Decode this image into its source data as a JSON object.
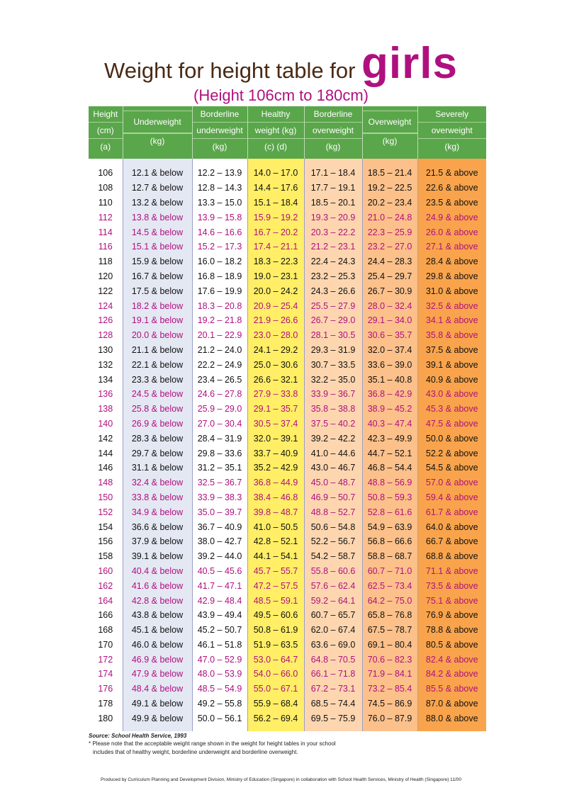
{
  "title": {
    "prefix": "Weight for height table for",
    "emphasis": "girls",
    "subtitle": "(Height 106cm to 180cm)"
  },
  "columns": [
    {
      "lines": [
        "Height",
        "(cm)",
        "(a)"
      ]
    },
    {
      "lines": [
        "",
        "Underweight",
        "",
        "(kg)"
      ]
    },
    {
      "lines": [
        "Borderline",
        "underweight",
        "(kg)"
      ]
    },
    {
      "lines": [
        "Healthy",
        "weight (kg)",
        "(c)    (d)"
      ]
    },
    {
      "lines": [
        "Borderline",
        "overweight",
        "(kg)"
      ]
    },
    {
      "lines": [
        "",
        "Overweight",
        "",
        "(kg)"
      ]
    },
    {
      "lines": [
        "Severely",
        "overweight",
        "(kg)"
      ]
    }
  ],
  "colors": {
    "header_green": "#5aa64a",
    "title_brown": "#4a2a14",
    "magenta": "#b0107f",
    "underweight_band": "#e4e8f3",
    "healthy_band": "#ffee66",
    "borderline_over_band": "#fdd6b0",
    "overweight_band": "#fcc08a",
    "severe_band": "#f9a44c"
  },
  "rows": [
    {
      "style": "blk",
      "cells": [
        "106",
        "12.1 & below",
        "12.2 – 13.9",
        "14.0 – 17.0",
        "17.1 – 18.4",
        "18.5 – 21.4",
        "21.5 & above"
      ]
    },
    {
      "style": "blk",
      "cells": [
        "108",
        "12.7 & below",
        "12.8 – 14.3",
        "14.4 – 17.6",
        "17.7 – 19.1",
        "19.2 – 22.5",
        "22.6 & above"
      ]
    },
    {
      "style": "blk",
      "cells": [
        "110",
        "13.2 & below",
        "13.3 – 15.0",
        "15.1 – 18.4",
        "18.5 – 20.1",
        "20.2 – 23.4",
        "23.5 & above"
      ]
    },
    {
      "style": "mag",
      "cells": [
        "112",
        "13.8 & below",
        "13.9 – 15.8",
        "15.9 – 19.2",
        "19.3 – 20.9",
        "21.0 – 24.8",
        "24.9 & above"
      ]
    },
    {
      "style": "mag",
      "cells": [
        "114",
        "14.5 & below",
        "14.6 – 16.6",
        "16.7 – 20.2",
        "20.3 – 22.2",
        "22.3 – 25.9",
        "26.0 & above"
      ]
    },
    {
      "style": "mag",
      "cells": [
        "116",
        "15.1 & below",
        "15.2 – 17.3",
        "17.4 – 21.1",
        "21.2 – 23.1",
        "23.2 – 27.0",
        "27.1 & above"
      ]
    },
    {
      "style": "blk",
      "cells": [
        "118",
        "15.9 & below",
        "16.0 – 18.2",
        "18.3 – 22.3",
        "22.4 – 24.3",
        "24.4 – 28.3",
        "28.4 & above"
      ]
    },
    {
      "style": "blk",
      "cells": [
        "120",
        "16.7 & below",
        "16.8 – 18.9",
        "19.0 – 23.1",
        "23.2 – 25.3",
        "25.4 – 29.7",
        "29.8 & above"
      ]
    },
    {
      "style": "blk",
      "cells": [
        "122",
        "17.5 & below",
        "17.6 – 19.9",
        "20.0 – 24.2",
        "24.3 – 26.6",
        "26.7 – 30.9",
        "31.0 & above"
      ]
    },
    {
      "style": "mag",
      "cells": [
        "124",
        "18.2 & below",
        "18.3 – 20.8",
        "20.9 – 25.4",
        "25.5 – 27.9",
        "28.0 – 32.4",
        "32.5 & above"
      ]
    },
    {
      "style": "mag",
      "cells": [
        "126",
        "19.1 & below",
        "19.2 – 21.8",
        "21.9 – 26.6",
        "26.7 – 29.0",
        "29.1 – 34.0",
        "34.1 & above"
      ]
    },
    {
      "style": "mag",
      "cells": [
        "128",
        "20.0 & below",
        "20.1 – 22.9",
        "23.0 – 28.0",
        "28.1 – 30.5",
        "30.6 – 35.7",
        "35.8 & above"
      ]
    },
    {
      "style": "blk",
      "cells": [
        "130",
        "21.1 & below",
        "21.2 – 24.0",
        "24.1 – 29.2",
        "29.3 – 31.9",
        "32.0 – 37.4",
        "37.5 & above"
      ]
    },
    {
      "style": "blk",
      "cells": [
        "132",
        "22.1 & below",
        "22.2 – 24.9",
        "25.0 – 30.6",
        "30.7 – 33.5",
        "33.6 – 39.0",
        "39.1 & above"
      ]
    },
    {
      "style": "blk",
      "cells": [
        "134",
        "23.3 & below",
        "23.4 – 26.5",
        "26.6 – 32.1",
        "32.2 – 35.0",
        "35.1 – 40.8",
        "40.9 & above"
      ]
    },
    {
      "style": "mag",
      "cells": [
        "136",
        "24.5 & below",
        "24.6 – 27.8",
        "27.9 – 33.8",
        "33.9 – 36.7",
        "36.8 – 42.9",
        "43.0 & above"
      ]
    },
    {
      "style": "mag",
      "cells": [
        "138",
        "25.8 & below",
        "25.9 – 29.0",
        "29.1 – 35.7",
        "35.8 – 38.8",
        "38.9 – 45.2",
        "45.3 & above"
      ]
    },
    {
      "style": "mag",
      "cells": [
        "140",
        "26.9 & below",
        "27.0 – 30.4",
        "30.5 – 37.4",
        "37.5 – 40.2",
        "40.3 – 47.4",
        "47.5 & above"
      ]
    },
    {
      "style": "blk",
      "cells": [
        "142",
        "28.3 & below",
        "28.4 – 31.9",
        "32.0 – 39.1",
        "39.2 – 42.2",
        "42.3 – 49.9",
        "50.0 & above"
      ]
    },
    {
      "style": "blk",
      "cells": [
        "144",
        "29.7 & below",
        "29.8 – 33.6",
        "33.7 – 40.9",
        "41.0 – 44.6",
        "44.7 – 52.1",
        "52.2 & above"
      ]
    },
    {
      "style": "blk",
      "cells": [
        "146",
        "31.1 & below",
        "31.2 – 35.1",
        "35.2 – 42.9",
        "43.0 – 46.7",
        "46.8 – 54.4",
        "54.5 & above"
      ]
    },
    {
      "style": "mag",
      "cells": [
        "148",
        "32.4 & below",
        "32.5 – 36.7",
        "36.8 – 44.9",
        "45.0 – 48.7",
        "48.8 – 56.9",
        "57.0 & above"
      ]
    },
    {
      "style": "mag",
      "cells": [
        "150",
        "33.8 & below",
        "33.9 – 38.3",
        "38.4 – 46.8",
        "46.9 – 50.7",
        "50.8 – 59.3",
        "59.4 & above"
      ]
    },
    {
      "style": "mag",
      "cells": [
        "152",
        "34.9 & below",
        "35.0 – 39.7",
        "39.8 – 48.7",
        "48.8 – 52.7",
        "52.8 – 61.6",
        "61.7 & above"
      ]
    },
    {
      "style": "blk",
      "cells": [
        "154",
        "36.6 & below",
        "36.7 – 40.9",
        "41.0 – 50.5",
        "50.6 – 54.8",
        "54.9 – 63.9",
        "64.0 & above"
      ]
    },
    {
      "style": "blk",
      "cells": [
        "156",
        "37.9 & below",
        "38.0 – 42.7",
        "42.8 – 52.1",
        "52.2 – 56.7",
        "56.8 – 66.6",
        "66.7 & above"
      ]
    },
    {
      "style": "blk",
      "cells": [
        "158",
        "39.1 & below",
        "39.2 – 44.0",
        "44.1 – 54.1",
        "54.2 – 58.7",
        "58.8 – 68.7",
        "68.8 & above"
      ]
    },
    {
      "style": "mag",
      "cells": [
        "160",
        "40.4 & below",
        "40.5 – 45.6",
        "45.7 – 55.7",
        "55.8 – 60.6",
        "60.7 – 71.0",
        "71.1 & above"
      ]
    },
    {
      "style": "mag",
      "cells": [
        "162",
        "41.6 & below",
        "41.7 – 47.1",
        "47.2 – 57.5",
        "57.6 – 62.4",
        "62.5 – 73.4",
        "73.5 & above"
      ]
    },
    {
      "style": "mag",
      "cells": [
        "164",
        "42.8 & below",
        "42.9 – 48.4",
        "48.5 – 59.1",
        "59.2 – 64.1",
        "64.2 – 75.0",
        "75.1 & above"
      ]
    },
    {
      "style": "blk",
      "cells": [
        "166",
        "43.8 & below",
        "43.9 – 49.4",
        "49.5 – 60.6",
        "60.7 – 65.7",
        "65.8 – 76.8",
        "76.9 & above"
      ]
    },
    {
      "style": "blk",
      "cells": [
        "168",
        "45.1 & below",
        "45.2 – 50.7",
        "50.8 – 61.9",
        "62.0 – 67.4",
        "67.5 – 78.7",
        "78.8 & above"
      ]
    },
    {
      "style": "blk",
      "cells": [
        "170",
        "46.0 & below",
        "46.1 – 51.8",
        "51.9 – 63.5",
        "63.6 – 69.0",
        "69.1 – 80.4",
        "80.5 & above"
      ]
    },
    {
      "style": "mag",
      "cells": [
        "172",
        "46.9 & below",
        "47.0 – 52.9",
        "53.0 – 64.7",
        "64.8 – 70.5",
        "70.6 – 82.3",
        "82.4 & above"
      ]
    },
    {
      "style": "mag",
      "cells": [
        "174",
        "47.9 & below",
        "48.0 – 53.9",
        "54.0 – 66.0",
        "66.1 – 71.8",
        "71.9 – 84.1",
        "84.2 & above"
      ]
    },
    {
      "style": "mag",
      "cells": [
        "176",
        "48.4 & below",
        "48.5 – 54.9",
        "55.0 – 67.1",
        "67.2 – 73.1",
        "73.2 – 85.4",
        "85.5 & above"
      ]
    },
    {
      "style": "blk",
      "cells": [
        "178",
        "49.1 & below",
        "49.2 – 55.8",
        "55.9 – 68.4",
        "68.5 – 74.4",
        "74.5 – 86.9",
        "87.0 & above"
      ]
    },
    {
      "style": "blk",
      "cells": [
        "180",
        "49.9 & below",
        "50.0 – 56.1",
        "56.2 – 69.4",
        "69.5 – 75.9",
        "76.0 – 87.9",
        "88.0 & above"
      ]
    }
  ],
  "footer": {
    "source": "Source: School Health Service, 1993",
    "note_line1": "* Please note that the acceptable weight range shown in the weight for height tables in your school",
    "note_line2": "includes that of healthy weight, borderline underweight and borderline overweight.",
    "produced_by": "Produced by Curriculum Planning and Development Division, Ministry of Education (Singapore) in collaboration with School Health Services, Ministry of Health (Singapore) 11/00"
  }
}
